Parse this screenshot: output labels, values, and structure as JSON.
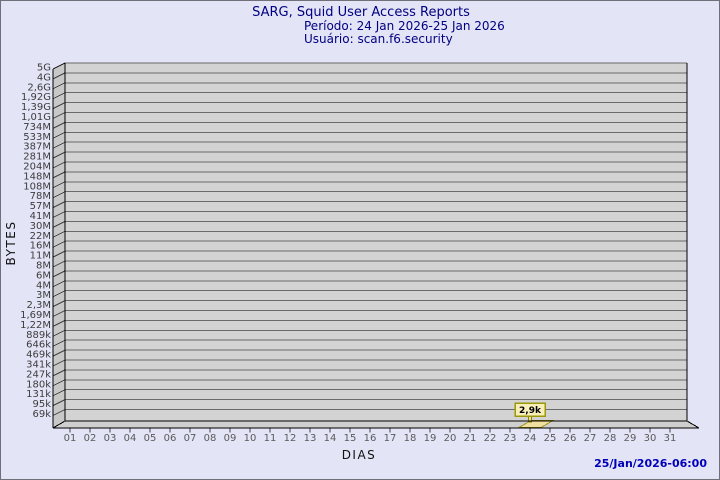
{
  "page": {
    "title": "SARG, Squid User Access Reports",
    "period_line": "Período: 24 Jan 2026-25 Jan 2026",
    "user_line": "Usuário: scan.f6.security",
    "timestamp": "25/Jan/2026-06:00"
  },
  "colors": {
    "background": "#e4e4f7",
    "border": "#70707a",
    "title_text": "#000080",
    "timestamp_text": "#0000bb",
    "plot_bg": "#d3d3d3",
    "wall_bg": "#c8c8c8",
    "grid_line": "#6a6a6a",
    "frame_line": "#000000",
    "bar_fill": "#f0e0a0",
    "bar_edge": "#8b8000",
    "tag_bg": "#f8f0b8",
    "tag_border": "#99990a"
  },
  "chart_data": {
    "type": "bar",
    "title": "SARG, Squid User Access Reports",
    "subtitle_period": "Período: 24 Jan 2026-25 Jan 2026",
    "subtitle_user": "Usuário: scan.f6.security",
    "xlabel": "DIAS",
    "ylabel": "BYTES",
    "y_axis_scale": "log",
    "ylim": [
      "69k",
      "5G"
    ],
    "grid": true,
    "y_tick_labels": [
      "5G",
      "4G",
      "2,6G",
      "1,92G",
      "1,39G",
      "1,01G",
      "734M",
      "533M",
      "387M",
      "281M",
      "204M",
      "148M",
      "108M",
      "78M",
      "57M",
      "41M",
      "30M",
      "22M",
      "16M",
      "11M",
      "8M",
      "6M",
      "4M",
      "3M",
      "2,3M",
      "1,69M",
      "1,22M",
      "889k",
      "646k",
      "469k",
      "341k",
      "247k",
      "180k",
      "131k",
      "95k",
      "69k"
    ],
    "x_tick_labels": [
      "01",
      "02",
      "03",
      "04",
      "05",
      "06",
      "07",
      "08",
      "09",
      "10",
      "11",
      "12",
      "13",
      "14",
      "15",
      "16",
      "17",
      "18",
      "19",
      "20",
      "21",
      "22",
      "23",
      "24",
      "25",
      "26",
      "27",
      "28",
      "29",
      "30",
      "31"
    ],
    "bars": [
      {
        "day": "24",
        "value_label": "2,9k",
        "value_bytes": 2900
      }
    ]
  }
}
